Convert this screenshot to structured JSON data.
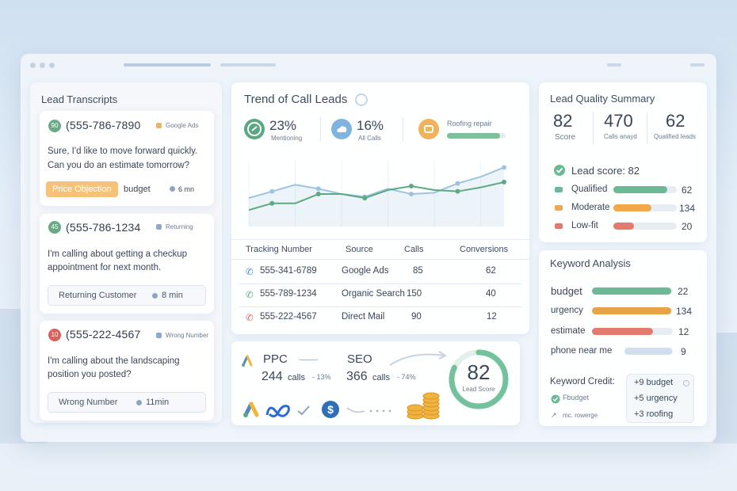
{
  "transcripts": {
    "title": "Lead Transcripts",
    "items": [
      {
        "score": "90",
        "score_color": "#6aab86",
        "phone": "(555-786-7890",
        "source": "Google Ads",
        "source_color": "#f0b25a",
        "text1": "Sure, I'd like to move forward quickly.",
        "text2": "Can you do an estimate tomorrow?",
        "tag": "Price Objection",
        "keyword": "budget",
        "duration": "6 mn"
      },
      {
        "score": "45",
        "score_color": "#6aab86",
        "phone": "(555-786-1234",
        "source": "Returning",
        "source_color": "#8fa9cc",
        "text1": "I'm calling about getting a checkup",
        "text2": "appointment for next month.",
        "tag": "Returning Customer",
        "duration": "8 min"
      },
      {
        "score": "10",
        "score_color": "#d9625a",
        "phone": "(555-222-4567",
        "source": "Wrong Number",
        "source_color": "#8fa9cc",
        "text1": "I'm calling about the landscaping",
        "text2": "position you posted?",
        "tag": "Wrong Number",
        "duration": "11min"
      }
    ]
  },
  "trend": {
    "title": "Trend of Call Leads",
    "stats": [
      {
        "value": "23%",
        "label": "Mentioning",
        "icon": "check-gauge-icon",
        "color": "#5aa782"
      },
      {
        "value": "16%",
        "label": "All Calls",
        "icon": "cloud-icon",
        "color": "#7fb4e0"
      },
      {
        "label": "Roofing repair",
        "icon": "toolbox-icon",
        "color": "#f0b25a",
        "progress": 0.9
      }
    ]
  },
  "chart_data": {
    "type": "line",
    "series": [
      {
        "color": "#9cc3e3",
        "values": [
          38,
          48,
          58,
          52,
          44,
          40,
          52,
          44,
          46,
          60,
          70,
          84
        ]
      },
      {
        "color": "#5fa982",
        "values": [
          20,
          30,
          30,
          44,
          44,
          38,
          50,
          56,
          50,
          48,
          54,
          62
        ]
      }
    ],
    "ylim": [
      0,
      100
    ]
  },
  "table": {
    "headers": [
      "Tracking Number",
      "Source",
      "Calls",
      "Conversions"
    ],
    "rows": [
      {
        "number": "555-341-6789",
        "source": "Google Ads",
        "calls": "85",
        "conversions": "62",
        "icon_color": "#4f88c4"
      },
      {
        "number": "555-789-1234",
        "source": "Organic Search",
        "calls": "150",
        "conversions": "40",
        "icon_color": "#5fa982"
      },
      {
        "number": "555-222-4567",
        "source": "Direct Mail",
        "calls": "90",
        "conversions": "12",
        "icon_color": "#d9625a"
      }
    ]
  },
  "channels": {
    "ppc_label": "PPC",
    "ppc_calls": "244",
    "ppc_calls_word": "calls",
    "ppc_change": "- 13%",
    "seo_label": "SEO",
    "seo_calls": "366",
    "seo_calls_word": "calls",
    "seo_change": "- 74%",
    "lead_score": "82",
    "lead_score_label": "Lead Score",
    "lead_score_fraction": 0.82
  },
  "summary": {
    "title": "Lead Quality Summary",
    "stats": [
      {
        "value": "82",
        "label": "Score"
      },
      {
        "value": "470",
        "label": "Calls anayd"
      },
      {
        "value": "62",
        "label": "Qualified leads"
      }
    ],
    "lead_score_text": "Lead score: 82",
    "rows": [
      {
        "label": "Qualified",
        "value": "62",
        "color": "#6cb996",
        "fill": 0.85
      },
      {
        "label": "Moderate",
        "value": "134",
        "color": "#f0a84a",
        "fill": 0.6
      },
      {
        "label": "Low-fit",
        "value": "20",
        "color": "#e27b6b",
        "fill": 0.33
      }
    ]
  },
  "keywords": {
    "title": "Keyword Analysis",
    "rows": [
      {
        "label": "budget",
        "value": "22",
        "color": "#6cb996",
        "fill": 0.98
      },
      {
        "label": "urgency",
        "value": "134",
        "color": "#e9a347",
        "fill": 0.98
      },
      {
        "label": "estimate",
        "value": "12",
        "color": "#e27b6b",
        "fill": 0.75
      },
      {
        "label": "phone near me",
        "value": "9",
        "color": "#cfdff0",
        "fill": 0.98
      }
    ],
    "credit_title": "Keyword Credit:",
    "credit_items": [
      "Fbudget",
      "mc. rowerge"
    ],
    "credit_values": [
      "+9 budget",
      "+5 urgency",
      "+3 roofing"
    ]
  }
}
